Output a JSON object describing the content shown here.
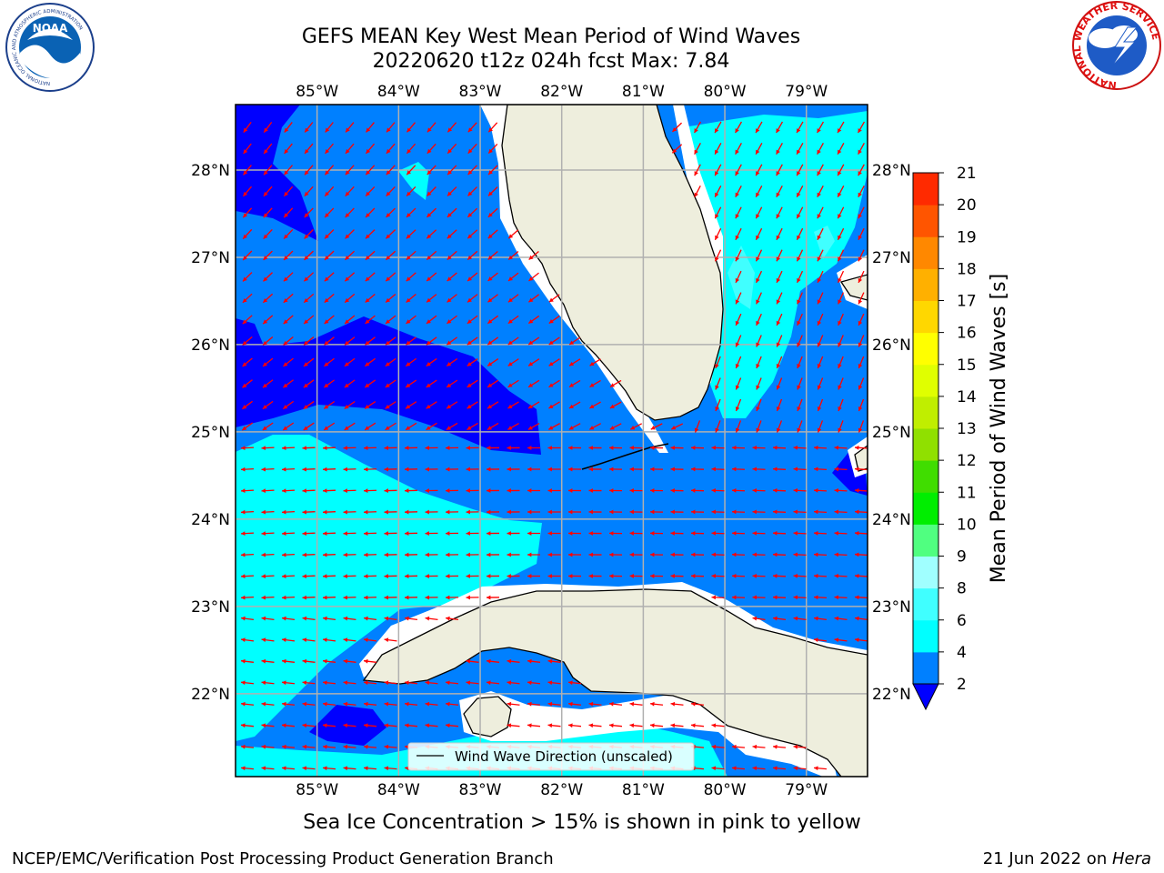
{
  "title_line1": "GEFS MEAN Key West Mean Period of Wind Waves",
  "title_line2": "20220620 t12z 024h fcst   Max: 7.84",
  "footer_caption": "Sea Ice Concentration > 15% is shown in pink to yellow",
  "footer_left": "NCEP/EMC/Verification Post Processing Product Generation Branch",
  "footer_right_prefix": "21 Jun 2022 on ",
  "footer_right_host": "Hera",
  "legend_label": "Wind Wave Direction (unscaled)",
  "logos": {
    "noaa_text": "NOAA",
    "noaa_ring": "NATIONAL OCEANIC AND ATMOSPHERIC ADMINISTRATION",
    "noaa_ring_bottom": "U.S. DEPARTMENT OF COMMERCE",
    "nws_ring": "NATIONAL WEATHER SERVICE"
  },
  "map": {
    "lon_labels": [
      "85°W",
      "84°W",
      "83°W",
      "82°W",
      "81°W",
      "80°W",
      "79°W"
    ],
    "lon_values": [
      -85,
      -84,
      -83,
      -82,
      -81,
      -80,
      -79
    ],
    "lat_labels": [
      "28°N",
      "27°N",
      "26°N",
      "25°N",
      "24°N",
      "23°N",
      "22°N"
    ],
    "lat_values": [
      28,
      27,
      26,
      25,
      24,
      23,
      22
    ],
    "lon_range": [
      -86.0,
      -78.25
    ],
    "lat_range": [
      21.05,
      28.75
    ]
  },
  "colorbar": {
    "title": "Mean Period of Wind Waves [s]",
    "tick_labels": [
      "2",
      "4",
      "6",
      "8",
      "9",
      "10",
      "11",
      "12",
      "13",
      "14",
      "15",
      "16",
      "17",
      "18",
      "19",
      "20",
      "21"
    ],
    "levels": [
      2,
      4,
      6,
      8,
      9,
      10,
      11,
      12,
      13,
      14,
      15,
      16,
      17,
      18,
      19,
      20,
      21
    ],
    "colors": [
      "#0080ff",
      "#00ffff",
      "#40ffff",
      "#a0ffff",
      "#50ff80",
      "#00ee00",
      "#40dd00",
      "#90e000",
      "#c0ee00",
      "#e0ff00",
      "#ffff00",
      "#ffd700",
      "#ffb000",
      "#ff8800",
      "#ff5500",
      "#ff2a00"
    ],
    "under_color": "#0000ff"
  },
  "colors": {
    "deep_blue": "#0000ff",
    "blue": "#0080ff",
    "cyan": "#00ffff",
    "light_cyan": "#40ffff",
    "land": "#eeeedd",
    "arrow": "#ff0000",
    "grid": "#b0b0b0"
  }
}
